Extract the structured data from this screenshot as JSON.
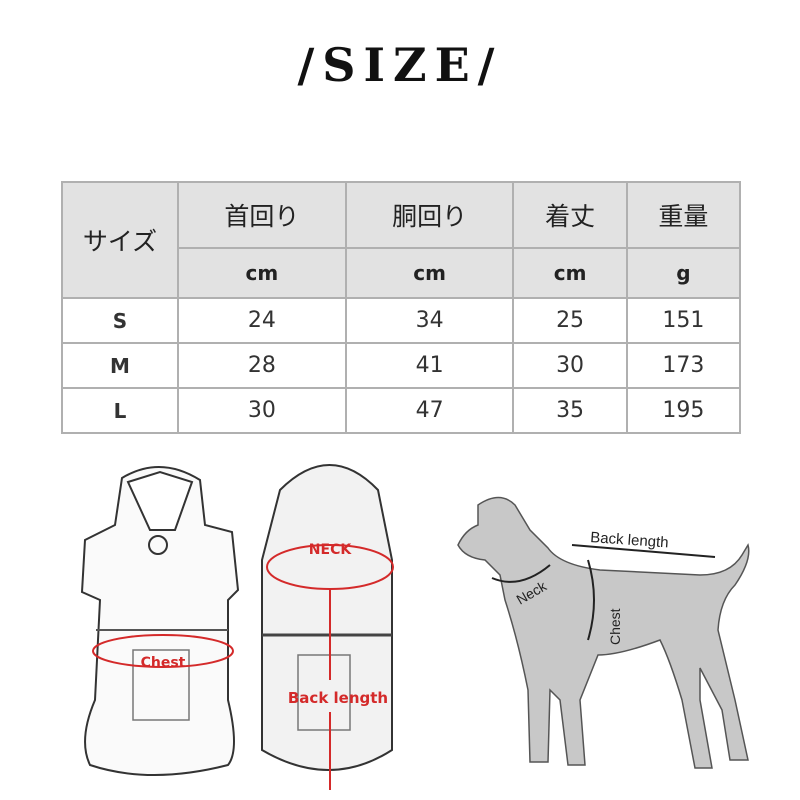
{
  "title": "/SIZE/",
  "table": {
    "size_header": "サイズ",
    "columns": [
      {
        "label": "首回り",
        "unit": "cm"
      },
      {
        "label": "胴回り",
        "unit": "cm"
      },
      {
        "label": "着丈",
        "unit": "cm"
      },
      {
        "label": "重量",
        "unit": "g"
      }
    ],
    "rows": [
      {
        "size": "S",
        "values": [
          "24",
          "34",
          "25",
          "151"
        ]
      },
      {
        "size": "M",
        "values": [
          "28",
          "41",
          "30",
          "173"
        ]
      },
      {
        "size": "L",
        "values": [
          "30",
          "47",
          "35",
          "195"
        ]
      }
    ]
  },
  "diagram": {
    "front_chest": "Chest",
    "back_neck": "NECK",
    "back_length": "Back length",
    "dog_back_length": "Back length",
    "dog_neck": "Neck",
    "dog_chest": "Chest"
  },
  "colors": {
    "accent": "#d42a2a",
    "header_bg": "#e2e2e2",
    "dog": "#c8c8c8"
  }
}
